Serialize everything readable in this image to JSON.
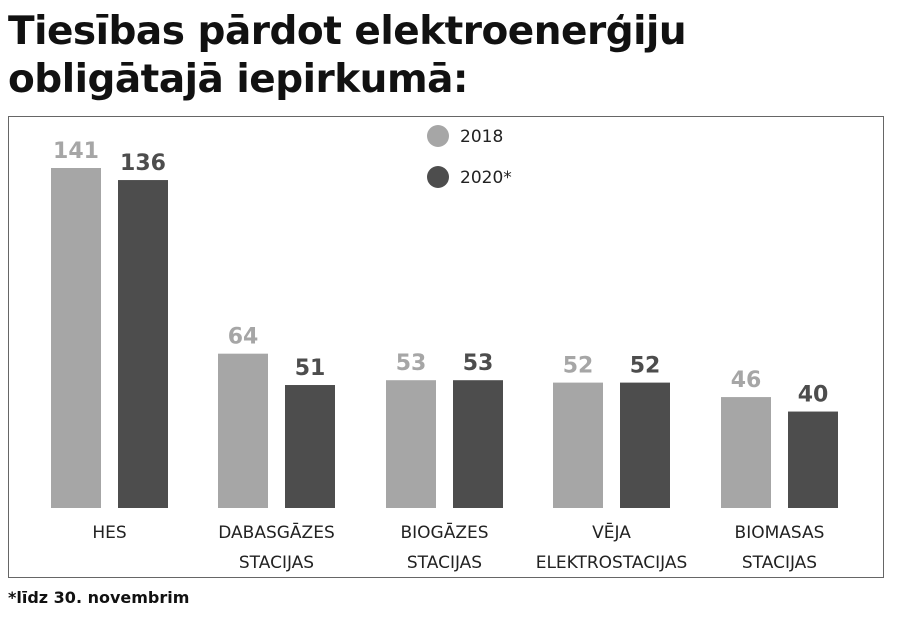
{
  "title": "Tiesības pārdot elektroenerģiju obligātajā iepirkumā:",
  "footnote": "*līdz 30. novembrim",
  "colors": {
    "series_2018": "#a6a6a6",
    "series_2020": "#4d4d4d",
    "frame": "#666666"
  },
  "chart_data": {
    "type": "bar",
    "title": "Tiesības pārdot elektroenerģiju obligātajā iepirkumā:",
    "categories": [
      [
        "HES"
      ],
      [
        "DABASGĀZES",
        "STACIJAS"
      ],
      [
        "BIOGĀZES",
        "STACIJAS"
      ],
      [
        "VĒJA",
        "ELEKTROSTACIJAS"
      ],
      [
        "BIOMASAS",
        "STACIJAS"
      ]
    ],
    "series": [
      {
        "name": "2018",
        "values": [
          141,
          64,
          53,
          52,
          46
        ],
        "color": "#a6a6a6"
      },
      {
        "name": "2020*",
        "values": [
          136,
          51,
          53,
          52,
          40
        ],
        "color": "#4d4d4d"
      }
    ],
    "ylim": [
      0,
      141
    ],
    "xlabel": "",
    "ylabel": "",
    "grid": false,
    "legend": "top-center"
  }
}
